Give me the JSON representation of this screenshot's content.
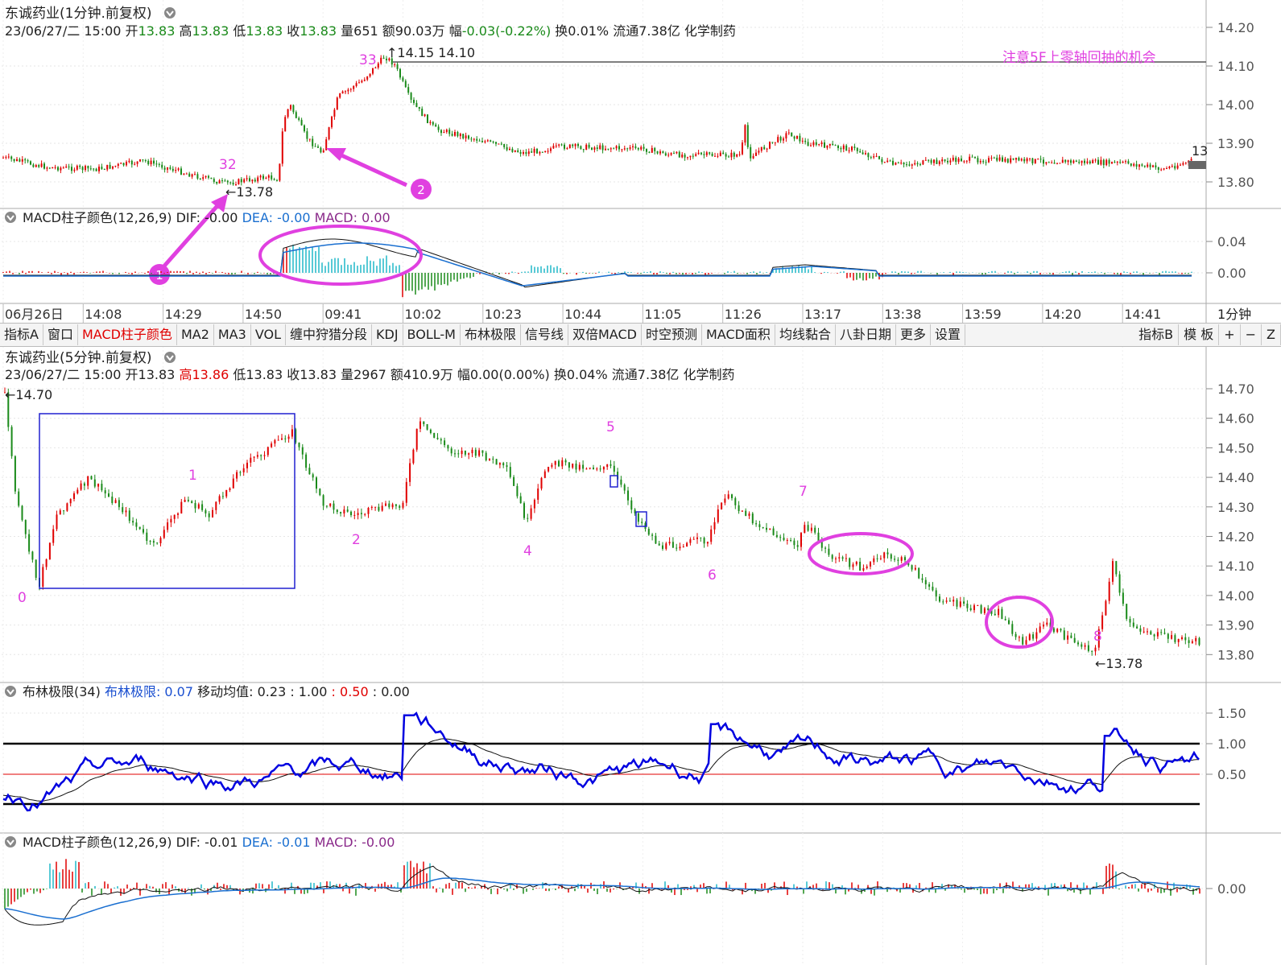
{
  "colors": {
    "up": "#e00000",
    "down": "#1a8a1a",
    "cyan": "#20b8c8",
    "magenta": "#e040e0",
    "blue": "#0000e0",
    "grid": "#d8d8d8"
  },
  "panel1": {
    "title": "东诚药业(1分钟.前复权)",
    "info": [
      {
        "t": "23/06/27/二 15:00 ",
        "c": "#222"
      },
      {
        "t": "开",
        "c": "#222"
      },
      {
        "t": "13.83 ",
        "c": "#1a8a1a"
      },
      {
        "t": "高",
        "c": "#222"
      },
      {
        "t": "13.83 ",
        "c": "#1a8a1a"
      },
      {
        "t": "低",
        "c": "#222"
      },
      {
        "t": "13.83 ",
        "c": "#1a8a1a"
      },
      {
        "t": "收",
        "c": "#222"
      },
      {
        "t": "13.83 ",
        "c": "#1a8a1a"
      },
      {
        "t": "量651 额90.03万 ",
        "c": "#222"
      },
      {
        "t": "幅",
        "c": "#222"
      },
      {
        "t": "-0.03(-0.22%) ",
        "c": "#1a8a1a"
      },
      {
        "t": "换0.01% 流通7.38亿 化学制药",
        "c": "#222"
      }
    ],
    "yticks": [
      "14.20",
      "14.10",
      "14.00",
      "13.90",
      "13.80"
    ],
    "ymin": 13.75,
    "ymax": 14.23,
    "annotations": {
      "mark32": "32",
      "mark33": "33",
      "low": "←13.78",
      "high": "↑14.15 14.10",
      "edge": "13",
      "note": "注意5F上零轴回抽的机会",
      "circle1": "1",
      "circle2": "2"
    }
  },
  "macd1": {
    "labels": [
      {
        "t": "MACD柱子颜色(12,26,9)  DIF: -0.00  ",
        "c": "#222"
      },
      {
        "t": "DEA: -0.00  ",
        "c": "#1a6fd0"
      },
      {
        "t": "MACD: 0.00",
        "c": "#8a2a8a"
      }
    ],
    "yticks": [
      "0.04",
      "0.00"
    ]
  },
  "timeaxis": {
    "labels": [
      "06月26日",
      "14:08",
      "14:29",
      "14:50",
      "09:41",
      "10:02",
      "10:23",
      "10:44",
      "11:05",
      "11:26",
      "13:17",
      "13:38",
      "13:59",
      "14:20",
      "14:41"
    ],
    "period": "1分钟"
  },
  "toolbar": {
    "left": [
      "指标A",
      "窗口",
      "MACD柱子颜色",
      "MA2",
      "MA3",
      "VOL",
      "缠中狩猎分段",
      "KDJ",
      "BOLL-M",
      "布林极限",
      "信号线",
      "双倍MACD",
      "时空预测",
      "MACD面积",
      "均线黏合",
      "八卦日期",
      "更多",
      "设置"
    ],
    "active": "MACD柱子颜色",
    "right": [
      "指标B",
      "模 板",
      "+",
      "−",
      "Z"
    ]
  },
  "panel2": {
    "title": "东诚药业(5分钟.前复权)",
    "info": [
      {
        "t": "23/06/27/二 15:00 开13.83 ",
        "c": "#222"
      },
      {
        "t": "高13.86 ",
        "c": "#e00000"
      },
      {
        "t": "低13.83 收13.83 量2967 额410.9万 幅0.00(0.00%) 换0.04% 流通7.38亿 化学制药",
        "c": "#222"
      }
    ],
    "yticks": [
      "14.70",
      "14.60",
      "14.50",
      "14.40",
      "14.30",
      "14.20",
      "14.10",
      "14.00",
      "13.90",
      "13.80"
    ],
    "ymin": 13.76,
    "ymax": 14.75,
    "annotations": {
      "high": "←14.70",
      "low": "←13.78",
      "waves": [
        "0",
        "1",
        "2",
        "4",
        "5",
        "6",
        "7",
        "8"
      ]
    }
  },
  "boll": {
    "labels": [
      {
        "t": "布林极限(34)  ",
        "c": "#222"
      },
      {
        "t": "布林极限: 0.07  ",
        "c": "#1a4fd0"
      },
      {
        "t": "移动均值: 0.23 : 1.00 ",
        "c": "#222"
      },
      {
        "t": ": 0.50 ",
        "c": "#e00000"
      },
      {
        "t": ": 0.00",
        "c": "#222"
      }
    ],
    "yticks": [
      "1.50",
      "1.00",
      "0.50"
    ]
  },
  "macd2": {
    "labels": [
      {
        "t": "MACD柱子颜色(12,26,9)  DIF: -0.01  ",
        "c": "#222"
      },
      {
        "t": "DEA: -0.01  ",
        "c": "#1a6fd0"
      },
      {
        "t": "MACD: -0.00",
        "c": "#8a2a8a"
      }
    ],
    "yticks": [
      "0.00"
    ]
  }
}
